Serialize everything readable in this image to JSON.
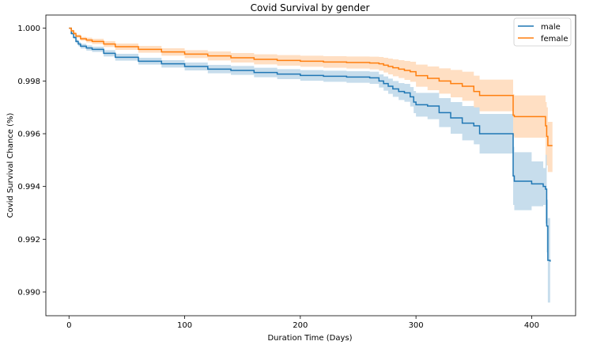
{
  "chart_data": {
    "type": "line",
    "title": "Covid Survival by gender",
    "xlabel": "Duration Time (Days)",
    "ylabel": "Covid Survival Chance (%)",
    "xlim": [
      -20,
      438
    ],
    "ylim": [
      0.9891,
      1.0005
    ],
    "x_ticks": [
      0,
      100,
      200,
      300,
      400
    ],
    "y_ticks": [
      0.99,
      0.992,
      0.994,
      0.996,
      0.998,
      1.0
    ],
    "y_tick_labels": [
      "0.990",
      "0.992",
      "0.994",
      "0.996",
      "0.998",
      "1.000"
    ],
    "grid": false,
    "legend_position": "top-right",
    "colors": {
      "male": "#1f77b4",
      "female": "#ff7f0e"
    },
    "series": [
      {
        "name": "male",
        "x": [
          0,
          2,
          4,
          6,
          8,
          10,
          15,
          20,
          30,
          40,
          60,
          80,
          100,
          120,
          140,
          160,
          180,
          200,
          220,
          240,
          260,
          268,
          272,
          276,
          280,
          285,
          290,
          295,
          298,
          300,
          310,
          320,
          330,
          340,
          350,
          355,
          383,
          384,
          385,
          400,
          410,
          412,
          413,
          414,
          416
        ],
        "y": [
          1.0,
          0.9998,
          0.99965,
          0.9995,
          0.9994,
          0.99932,
          0.99925,
          0.9992,
          0.99905,
          0.9989,
          0.99875,
          0.99865,
          0.99855,
          0.99845,
          0.9984,
          0.99832,
          0.99826,
          0.99821,
          0.99818,
          0.99815,
          0.99812,
          0.998,
          0.9979,
          0.9978,
          0.9977,
          0.9976,
          0.99755,
          0.9974,
          0.9972,
          0.9971,
          0.99705,
          0.9968,
          0.9966,
          0.9964,
          0.9963,
          0.996,
          0.996,
          0.9944,
          0.9942,
          0.9941,
          0.994,
          0.9939,
          0.9925,
          0.9912,
          0.99115
        ],
        "ci_lower": [
          1.0,
          0.99975,
          0.9996,
          0.99943,
          0.99932,
          0.99923,
          0.99915,
          0.9991,
          0.99893,
          0.99877,
          0.99862,
          0.99851,
          0.9984,
          0.99829,
          0.99823,
          0.99814,
          0.99807,
          0.99801,
          0.99797,
          0.99793,
          0.99789,
          0.99775,
          0.99763,
          0.99751,
          0.9974,
          0.99728,
          0.99721,
          0.99703,
          0.99678,
          0.99665,
          0.99655,
          0.99625,
          0.996,
          0.99575,
          0.9956,
          0.99525,
          0.99525,
          0.9933,
          0.9931,
          0.99325,
          0.9933,
          0.9926,
          0.9915,
          0.9896,
          0.9895
        ],
        "ci_upper": [
          1.0,
          0.99985,
          0.9997,
          0.99957,
          0.99948,
          0.99941,
          0.99935,
          0.9993,
          0.99917,
          0.99903,
          0.99888,
          0.99879,
          0.9987,
          0.99861,
          0.99857,
          0.9985,
          0.99845,
          0.99841,
          0.99839,
          0.99837,
          0.99835,
          0.99825,
          0.99817,
          0.99809,
          0.998,
          0.99792,
          0.99789,
          0.99777,
          0.99762,
          0.99755,
          0.99755,
          0.99735,
          0.9972,
          0.99705,
          0.997,
          0.99675,
          0.99675,
          0.9955,
          0.9953,
          0.99495,
          0.9947,
          0.9952,
          0.9935,
          0.9928,
          0.99255
        ]
      },
      {
        "name": "female",
        "x": [
          0,
          2,
          4,
          6,
          10,
          15,
          20,
          30,
          40,
          60,
          80,
          100,
          120,
          140,
          160,
          180,
          200,
          220,
          240,
          260,
          268,
          272,
          276,
          280,
          285,
          290,
          295,
          300,
          310,
          320,
          330,
          340,
          350,
          355,
          383,
          384,
          385,
          400,
          410,
          412,
          413,
          414,
          418
        ],
        "y": [
          1.0,
          0.9999,
          0.9998,
          0.9997,
          0.9996,
          0.99955,
          0.9995,
          0.9994,
          0.9993,
          0.9992,
          0.9991,
          0.99902,
          0.99895,
          0.99888,
          0.99882,
          0.99878,
          0.99875,
          0.99872,
          0.9987,
          0.99868,
          0.99865,
          0.9986,
          0.99855,
          0.9985,
          0.99845,
          0.9984,
          0.99835,
          0.9982,
          0.9981,
          0.998,
          0.9979,
          0.9978,
          0.9976,
          0.99745,
          0.99745,
          0.9967,
          0.99665,
          0.99665,
          0.99665,
          0.9963,
          0.9959,
          0.99555,
          0.99555
        ],
        "ci_lower": [
          1.0,
          0.99986,
          0.99975,
          0.99964,
          0.99953,
          0.99946,
          0.9994,
          0.99929,
          0.99918,
          0.99907,
          0.99896,
          0.99887,
          0.99878,
          0.9987,
          0.99863,
          0.99858,
          0.99854,
          0.9985,
          0.99847,
          0.99844,
          0.99839,
          0.99832,
          0.99825,
          0.99818,
          0.99811,
          0.99804,
          0.99797,
          0.99778,
          0.99765,
          0.99752,
          0.99738,
          0.99725,
          0.997,
          0.99685,
          0.99685,
          0.9959,
          0.99585,
          0.99585,
          0.99585,
          0.9952,
          0.9948,
          0.99455,
          0.99455
        ],
        "ci_upper": [
          1.0,
          0.99994,
          0.99985,
          0.99976,
          0.99967,
          0.99964,
          0.9996,
          0.99951,
          0.99942,
          0.99933,
          0.99924,
          0.99917,
          0.99912,
          0.99906,
          0.99901,
          0.99898,
          0.99896,
          0.99894,
          0.99893,
          0.99892,
          0.99891,
          0.99888,
          0.99885,
          0.99882,
          0.99879,
          0.99876,
          0.99873,
          0.99862,
          0.99855,
          0.99848,
          0.99842,
          0.99835,
          0.9982,
          0.99805,
          0.99805,
          0.9975,
          0.99745,
          0.99745,
          0.99745,
          0.9972,
          0.997,
          0.99645,
          0.99645
        ]
      }
    ]
  }
}
